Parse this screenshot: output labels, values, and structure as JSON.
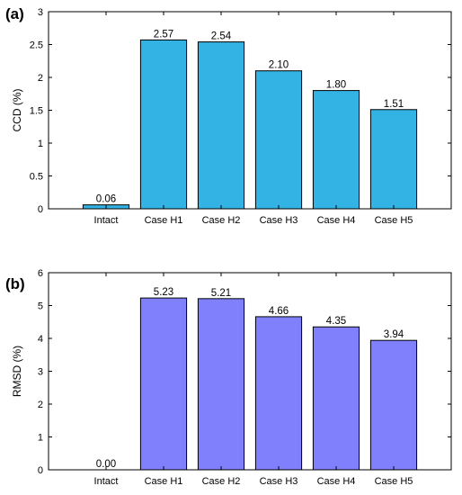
{
  "colors": {
    "panel_a_bar": "#33b3e3",
    "panel_b_bar": "#8080fc",
    "bar_edge": "#000000"
  },
  "chart_data": [
    {
      "panel": "(a)",
      "type": "bar",
      "title": "",
      "xlabel": "",
      "ylabel": "CCD (%)",
      "categories": [
        "Intact",
        "Case H1",
        "Case H2",
        "Case H3",
        "Case H4",
        "Case H5"
      ],
      "values": [
        0.06,
        2.57,
        2.54,
        2.1,
        1.8,
        1.51
      ],
      "data_labels": [
        "0.06",
        "2.57",
        "2.54",
        "2.10",
        "1.80",
        "1.51"
      ],
      "ylim": [
        0,
        3
      ],
      "yticks": [
        0,
        0.5,
        1,
        1.5,
        2,
        2.5,
        3
      ],
      "ytick_labels": [
        "0",
        "0.5",
        "1",
        "1.5",
        "2",
        "2.5",
        "3"
      ],
      "grid": false
    },
    {
      "panel": "(b)",
      "type": "bar",
      "title": "",
      "xlabel": "",
      "ylabel": "RMSD (%)",
      "categories": [
        "Intact",
        "Case H1",
        "Case H2",
        "Case H3",
        "Case H4",
        "Case H5"
      ],
      "values": [
        0.0,
        5.23,
        5.21,
        4.66,
        4.35,
        3.94
      ],
      "data_labels": [
        "0.00",
        "5.23",
        "5.21",
        "4.66",
        "4.35",
        "3.94"
      ],
      "ylim": [
        0,
        6
      ],
      "yticks": [
        0,
        1,
        2,
        3,
        4,
        5,
        6
      ],
      "ytick_labels": [
        "0",
        "1",
        "2",
        "3",
        "4",
        "5",
        "6"
      ],
      "grid": false
    }
  ]
}
